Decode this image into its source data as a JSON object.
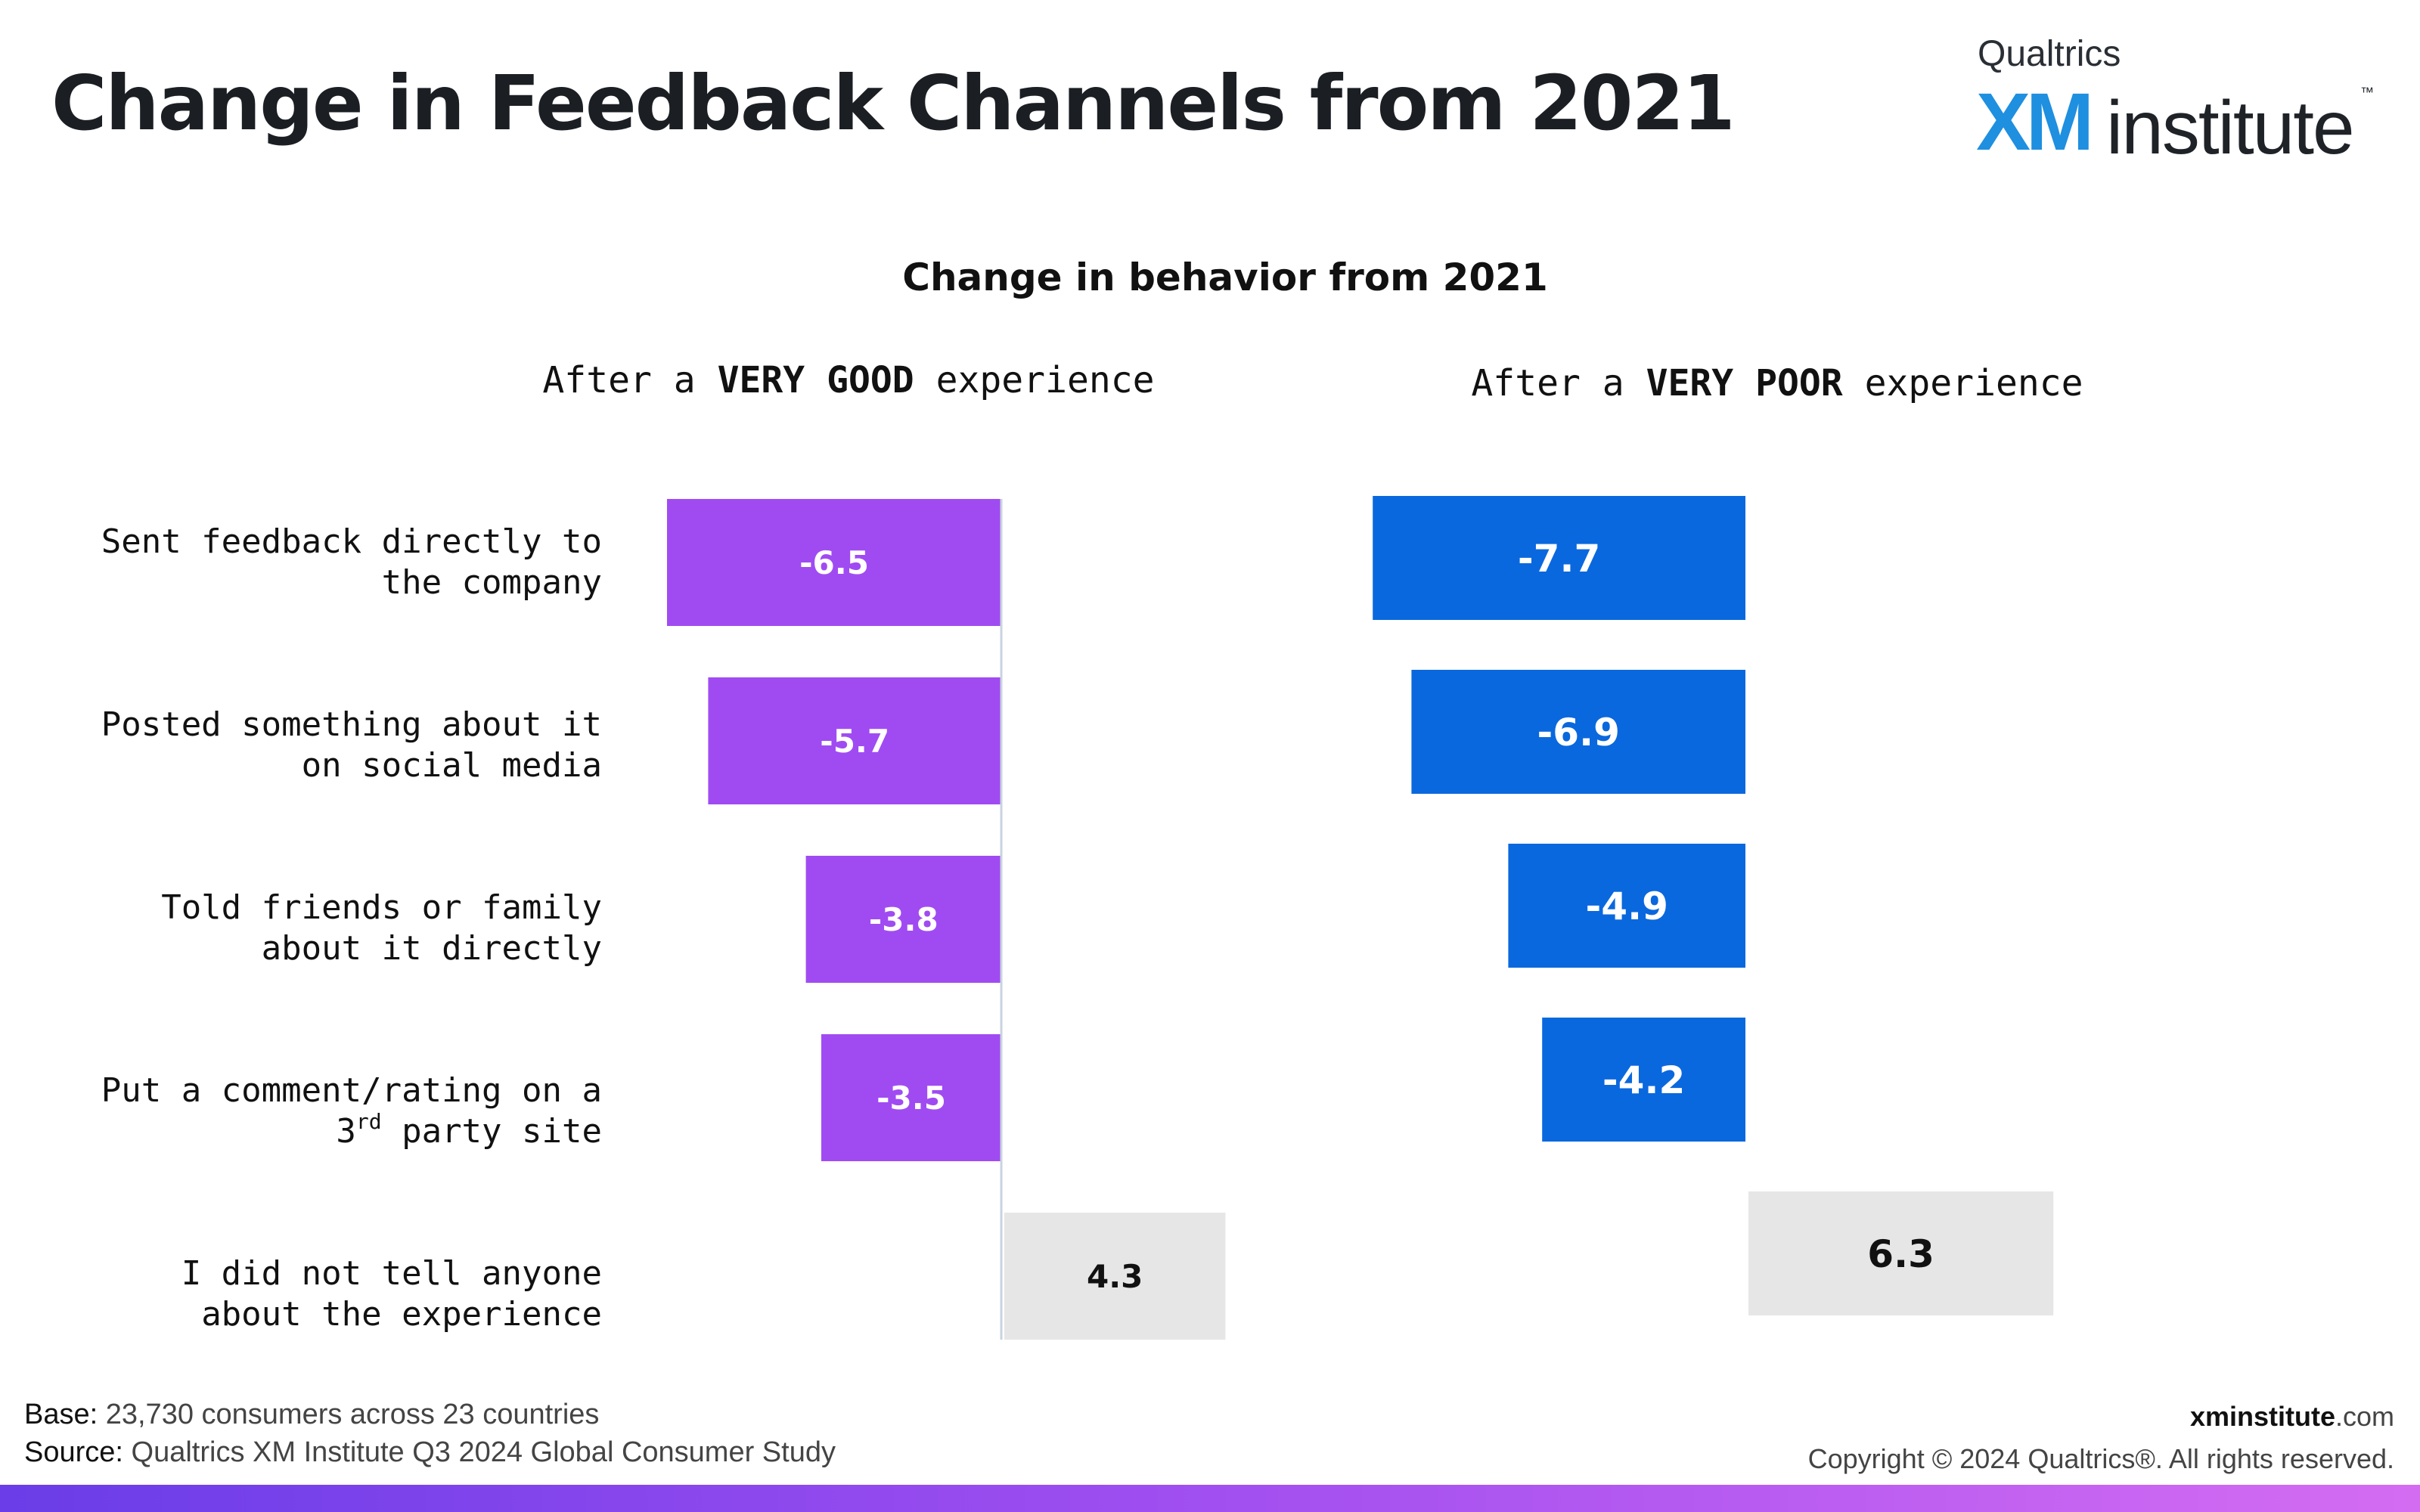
{
  "header": {
    "title": "Change in Feedback Channels from 2021"
  },
  "logo": {
    "brand": "Qualtrics",
    "mark": "XM",
    "word": "institute",
    "tm": "™"
  },
  "colors": {
    "good_series": "#a04bf2",
    "poor_series": "#0a68de",
    "positive_bar": "#e6e6e6",
    "bottom_band": [
      "#6a3de8",
      "#d46cf2"
    ]
  },
  "chart_data": {
    "type": "bar",
    "orientation": "horizontal",
    "title": "Change in behavior from 2021",
    "categories": [
      [
        "Sent feedback directly to",
        "the company"
      ],
      [
        "Posted something about it",
        "on social media"
      ],
      [
        "Told friends or family",
        "about it directly"
      ],
      [
        "Put a comment/rating on a",
        "3rd party site"
      ],
      [
        "I did not tell anyone",
        "about the experience"
      ]
    ],
    "panels": [
      {
        "heading": {
          "pre": "After a ",
          "bold": "VERY GOOD",
          "post": " experience"
        },
        "values": [
          -6.5,
          -5.7,
          -3.8,
          -3.5,
          4.3
        ]
      },
      {
        "heading": {
          "pre": "After a ",
          "bold": "VERY POOR",
          "post": " experience"
        },
        "values": [
          -7.7,
          -6.9,
          -4.9,
          -4.2,
          6.3
        ]
      }
    ],
    "legend": "none",
    "grid": false
  },
  "footer": {
    "base_label": "Base:",
    "base_text": "23,730 consumers across 23 countries",
    "source_label": "Source:",
    "source_text": "Qualtrics XM Institute Q3 2024 Global Consumer Study",
    "site_strong": "xminstitute",
    "site_rest": ".com",
    "copyright": "Copyright © 2024 Qualtrics®. All rights reserved."
  }
}
